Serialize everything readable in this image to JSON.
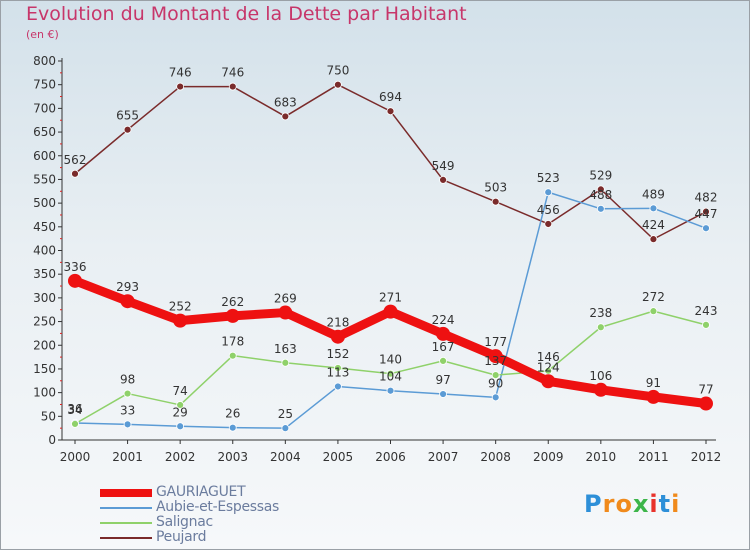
{
  "title": "Evolution du Montant de la Dette par Habitant",
  "subtitle": "(en €)",
  "logo_text": "Proxiti",
  "chart_data": {
    "type": "line",
    "x": [
      "2000",
      "2001",
      "2002",
      "2003",
      "2004",
      "2005",
      "2006",
      "2007",
      "2008",
      "2009",
      "2010",
      "2011",
      "2012"
    ],
    "y_ticks": [
      0,
      50,
      100,
      150,
      200,
      250,
      300,
      350,
      400,
      450,
      500,
      550,
      600,
      650,
      700,
      750,
      800
    ],
    "ylim": [
      0,
      800
    ],
    "grid": false,
    "legend_position": "bottom-left",
    "series": [
      {
        "name": "GAURIAGUET",
        "color": "#ee1111",
        "values": [
          336,
          293,
          252,
          262,
          269,
          218,
          271,
          224,
          177,
          124,
          106,
          91,
          77
        ],
        "labels": [
          "336",
          "293",
          "252",
          "262",
          "269",
          "218",
          "271",
          "224",
          "177",
          "124",
          "106",
          "91",
          "77"
        ]
      },
      {
        "name": "Aubie-et-Espessas",
        "color": "#5b9bd5",
        "values": [
          36,
          33,
          29,
          26,
          25,
          113,
          104,
          97,
          90,
          523,
          488,
          489,
          447
        ],
        "labels": [
          "36",
          "33",
          "29",
          "26",
          "25",
          "113",
          "104",
          "97",
          "90",
          "523",
          "488",
          "489",
          "447"
        ]
      },
      {
        "name": "Salignac",
        "color": "#8fd16a",
        "values": [
          34,
          98,
          74,
          178,
          163,
          152,
          140,
          167,
          137,
          146,
          238,
          272,
          243
        ],
        "labels": [
          "34",
          "98",
          "74",
          "178",
          "163",
          "152",
          "140",
          "167",
          "137",
          "146",
          "238",
          "272",
          "243"
        ]
      },
      {
        "name": "Peujard",
        "color": "#7a2b2b",
        "values": [
          562,
          655,
          746,
          746,
          683,
          750,
          694,
          549,
          503,
          456,
          529,
          424,
          482
        ],
        "labels": [
          "562",
          "655",
          "746",
          "746",
          "683",
          "750",
          "694",
          "549",
          "503",
          "456",
          "529",
          "424",
          "482"
        ]
      }
    ]
  }
}
